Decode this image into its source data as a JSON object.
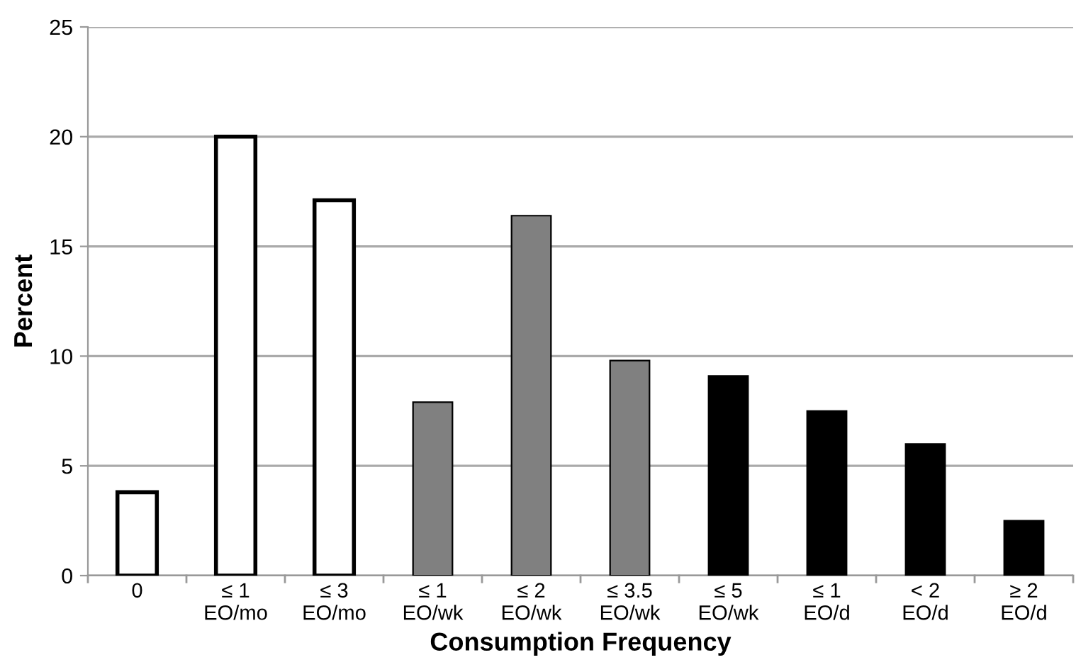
{
  "chart_data": {
    "type": "bar",
    "xlabel": "Consumption Frequency",
    "ylabel": "Percent",
    "categories": [
      "0",
      "≤ 1\nEO/mo",
      "≤ 3\nEO/mo",
      "≤ 1\nEO/wk",
      "≤ 2\nEO/wk",
      "≤ 3.5\nEO/wk",
      "≤ 5\nEO/wk",
      "≤ 1\nEO/d",
      "< 2\nEO/d",
      "≥ 2\nEO/d"
    ],
    "values": [
      3.8,
      20.0,
      17.1,
      7.9,
      16.4,
      9.8,
      9.1,
      7.5,
      6.0,
      2.5
    ],
    "colors": [
      "#ffffff",
      "#ffffff",
      "#ffffff",
      "#808080",
      "#808080",
      "#808080",
      "#000000",
      "#000000",
      "#000000",
      "#000000"
    ],
    "ylim": [
      0,
      25
    ],
    "yticks": [
      0,
      5,
      10,
      15,
      20,
      25
    ],
    "grid": "y",
    "legend": false
  }
}
